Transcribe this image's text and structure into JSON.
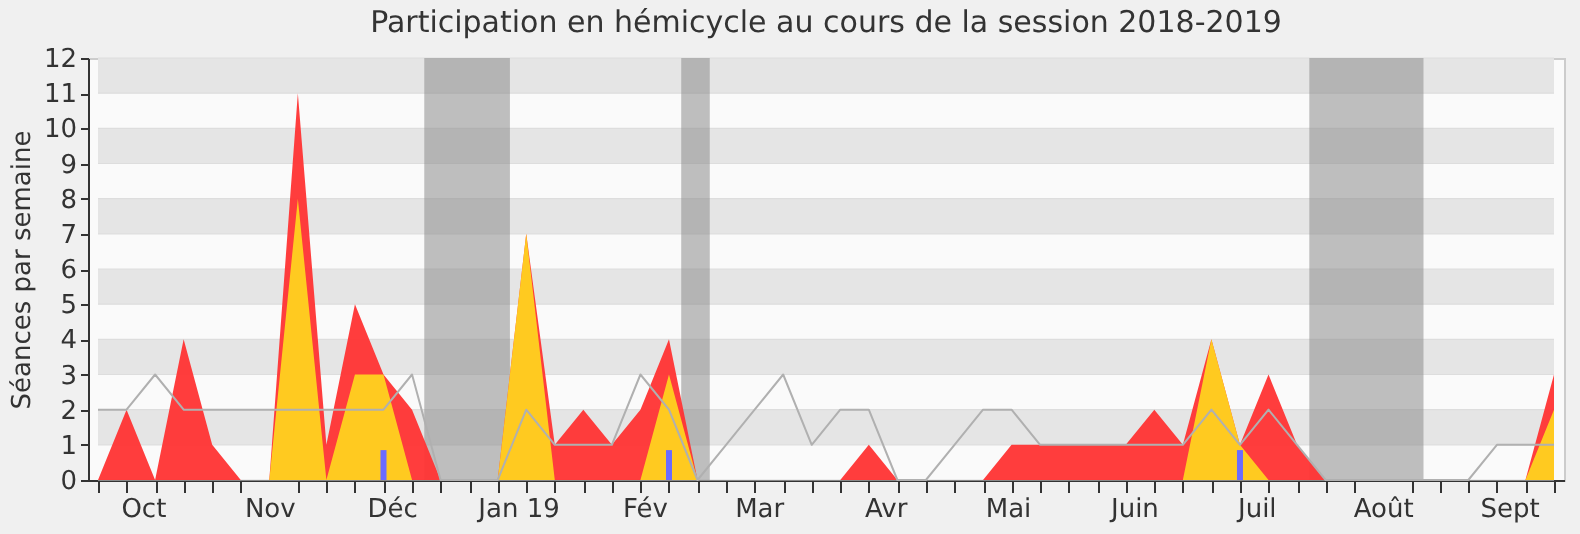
{
  "chart_data": {
    "type": "area",
    "title": "Participation en hémicycle au cours de la session 2018-2019",
    "ylabel": "Séances par semaine",
    "x": [
      "2018-09-20",
      "2018-09-27",
      "2018-10-04",
      "2018-10-11",
      "2018-10-18",
      "2018-10-25",
      "2018-11-01",
      "2018-11-08",
      "2018-11-15",
      "2018-11-22",
      "2018-11-29",
      "2018-12-06",
      "2018-12-13",
      "2018-12-20",
      "2018-12-27",
      "2019-01-03",
      "2019-01-10",
      "2019-01-17",
      "2019-01-24",
      "2019-01-31",
      "2019-02-07",
      "2019-02-14",
      "2019-02-21",
      "2019-02-28",
      "2019-03-07",
      "2019-03-14",
      "2019-03-21",
      "2019-03-28",
      "2019-04-04",
      "2019-04-11",
      "2019-04-18",
      "2019-04-25",
      "2019-05-02",
      "2019-05-09",
      "2019-05-16",
      "2019-05-23",
      "2019-05-30",
      "2019-06-06",
      "2019-06-13",
      "2019-06-20",
      "2019-06-27",
      "2019-07-04",
      "2019-07-11",
      "2019-07-18",
      "2019-07-25",
      "2019-08-01",
      "2019-08-08",
      "2019-08-15",
      "2019-08-22",
      "2019-08-29",
      "2019-09-05",
      "2019-09-12"
    ],
    "xlim": [
      "2018-09-20",
      "2019-09-12"
    ],
    "xticks": [
      {
        "value": "2018-09-20",
        "label": null
      },
      {
        "value": "2018-09-27",
        "label": null
      },
      {
        "value": "2018-10-01",
        "label": "Oct"
      },
      {
        "value": "2018-10-04",
        "label": null
      },
      {
        "value": "2018-10-11",
        "label": null
      },
      {
        "value": "2018-10-18",
        "label": null
      },
      {
        "value": "2018-10-25",
        "label": null
      },
      {
        "value": "2018-11-01",
        "label": "Nov"
      },
      {
        "value": "2018-11-08",
        "label": null
      },
      {
        "value": "2018-11-15",
        "label": null
      },
      {
        "value": "2018-11-22",
        "label": null
      },
      {
        "value": "2018-11-29",
        "label": null
      },
      {
        "value": "2018-12-01",
        "label": "Déc"
      },
      {
        "value": "2018-12-06",
        "label": null
      },
      {
        "value": "2018-12-13",
        "label": null
      },
      {
        "value": "2018-12-20",
        "label": null
      },
      {
        "value": "2018-12-27",
        "label": null
      },
      {
        "value": "2019-01-01",
        "label": "Jan 19"
      },
      {
        "value": "2019-01-03",
        "label": null
      },
      {
        "value": "2019-01-10",
        "label": null
      },
      {
        "value": "2019-01-17",
        "label": null
      },
      {
        "value": "2019-01-24",
        "label": null
      },
      {
        "value": "2019-01-31",
        "label": null
      },
      {
        "value": "2019-02-01",
        "label": "Fév"
      },
      {
        "value": "2019-02-07",
        "label": null
      },
      {
        "value": "2019-02-14",
        "label": null
      },
      {
        "value": "2019-02-21",
        "label": null
      },
      {
        "value": "2019-02-28",
        "label": null
      },
      {
        "value": "2019-03-01",
        "label": "Mar"
      },
      {
        "value": "2019-03-07",
        "label": null
      },
      {
        "value": "2019-03-14",
        "label": null
      },
      {
        "value": "2019-03-21",
        "label": null
      },
      {
        "value": "2019-03-28",
        "label": null
      },
      {
        "value": "2019-04-01",
        "label": "Avr"
      },
      {
        "value": "2019-04-04",
        "label": null
      },
      {
        "value": "2019-04-11",
        "label": null
      },
      {
        "value": "2019-04-18",
        "label": null
      },
      {
        "value": "2019-04-25",
        "label": null
      },
      {
        "value": "2019-05-01",
        "label": "Mai"
      },
      {
        "value": "2019-05-02",
        "label": null
      },
      {
        "value": "2019-05-09",
        "label": null
      },
      {
        "value": "2019-05-16",
        "label": null
      },
      {
        "value": "2019-05-23",
        "label": null
      },
      {
        "value": "2019-05-30",
        "label": null
      },
      {
        "value": "2019-06-01",
        "label": "Juin"
      },
      {
        "value": "2019-06-06",
        "label": null
      },
      {
        "value": "2019-06-13",
        "label": null
      },
      {
        "value": "2019-06-20",
        "label": null
      },
      {
        "value": "2019-06-27",
        "label": null
      },
      {
        "value": "2019-07-01",
        "label": "Juil"
      },
      {
        "value": "2019-07-04",
        "label": null
      },
      {
        "value": "2019-07-11",
        "label": null
      },
      {
        "value": "2019-07-18",
        "label": null
      },
      {
        "value": "2019-07-25",
        "label": null
      },
      {
        "value": "2019-08-01",
        "label": "Août"
      },
      {
        "value": "2019-08-08",
        "label": null
      },
      {
        "value": "2019-08-15",
        "label": null
      },
      {
        "value": "2019-08-22",
        "label": null
      },
      {
        "value": "2019-08-29",
        "label": null
      },
      {
        "value": "2019-09-01",
        "label": "Sept"
      },
      {
        "value": "2019-09-05",
        "label": null
      },
      {
        "value": "2019-09-12",
        "label": null
      }
    ],
    "ylim": [
      0,
      12
    ],
    "yticks": [
      0,
      1,
      2,
      3,
      4,
      5,
      6,
      7,
      8,
      9,
      10,
      11,
      12
    ],
    "grid": "y",
    "bands": [
      {
        "axis": "x",
        "from": "2018-12-09",
        "to": "2018-12-30",
        "color": "#8c8c8c"
      },
      {
        "axis": "x",
        "from": "2019-02-10",
        "to": "2019-02-17",
        "color": "#8c8c8c"
      },
      {
        "axis": "x",
        "from": "2019-07-14",
        "to": "2019-08-11",
        "color": "#8c8c8c"
      }
    ],
    "series": [
      {
        "type": "line",
        "color": "#b0b0b0",
        "values": [
          2,
          2,
          3,
          2,
          2,
          2,
          2,
          2,
          2,
          2,
          2,
          3,
          0,
          0,
          0,
          2,
          1,
          1,
          1,
          3,
          2,
          0,
          1,
          2,
          3,
          1,
          2,
          2,
          0,
          0,
          1,
          2,
          2,
          1,
          1,
          1,
          1,
          1,
          1,
          2,
          1,
          2,
          1,
          0,
          0,
          0,
          0,
          0,
          0,
          1,
          1,
          1
        ]
      },
      {
        "color": "#ff3333",
        "values": [
          0,
          2,
          0,
          4,
          1,
          0,
          0,
          11,
          1,
          5,
          3,
          2,
          0,
          0,
          0,
          7,
          1,
          2,
          1,
          2,
          4,
          0,
          0,
          0,
          0,
          0,
          0,
          1,
          0,
          0,
          0,
          0,
          1,
          1,
          1,
          1,
          1,
          2,
          1,
          4,
          1,
          3,
          1,
          0,
          0,
          0,
          0,
          0,
          0,
          0,
          0,
          3
        ]
      },
      {
        "color": "#ffd21f",
        "values": [
          0,
          0,
          0,
          0,
          0,
          0,
          0,
          8,
          0,
          3,
          3,
          0,
          0,
          0,
          0,
          7,
          0,
          0,
          0,
          0,
          3,
          0,
          0,
          0,
          0,
          0,
          0,
          0,
          0,
          0,
          0,
          0,
          0,
          0,
          0,
          0,
          0,
          0,
          0,
          4,
          1,
          0,
          0,
          0,
          0,
          0,
          0,
          0,
          0,
          0,
          0,
          2
        ]
      },
      {
        "type": "bar",
        "color": "#6b6bff",
        "values": [
          null,
          null,
          null,
          null,
          null,
          null,
          null,
          null,
          null,
          null,
          0.85,
          null,
          null,
          null,
          null,
          null,
          null,
          null,
          null,
          null,
          0.85,
          null,
          null,
          null,
          null,
          null,
          null,
          null,
          null,
          null,
          null,
          null,
          null,
          null,
          null,
          null,
          null,
          null,
          null,
          null,
          0.85,
          null,
          null,
          null,
          null,
          null,
          null,
          null,
          null,
          null,
          null,
          null
        ]
      }
    ]
  }
}
